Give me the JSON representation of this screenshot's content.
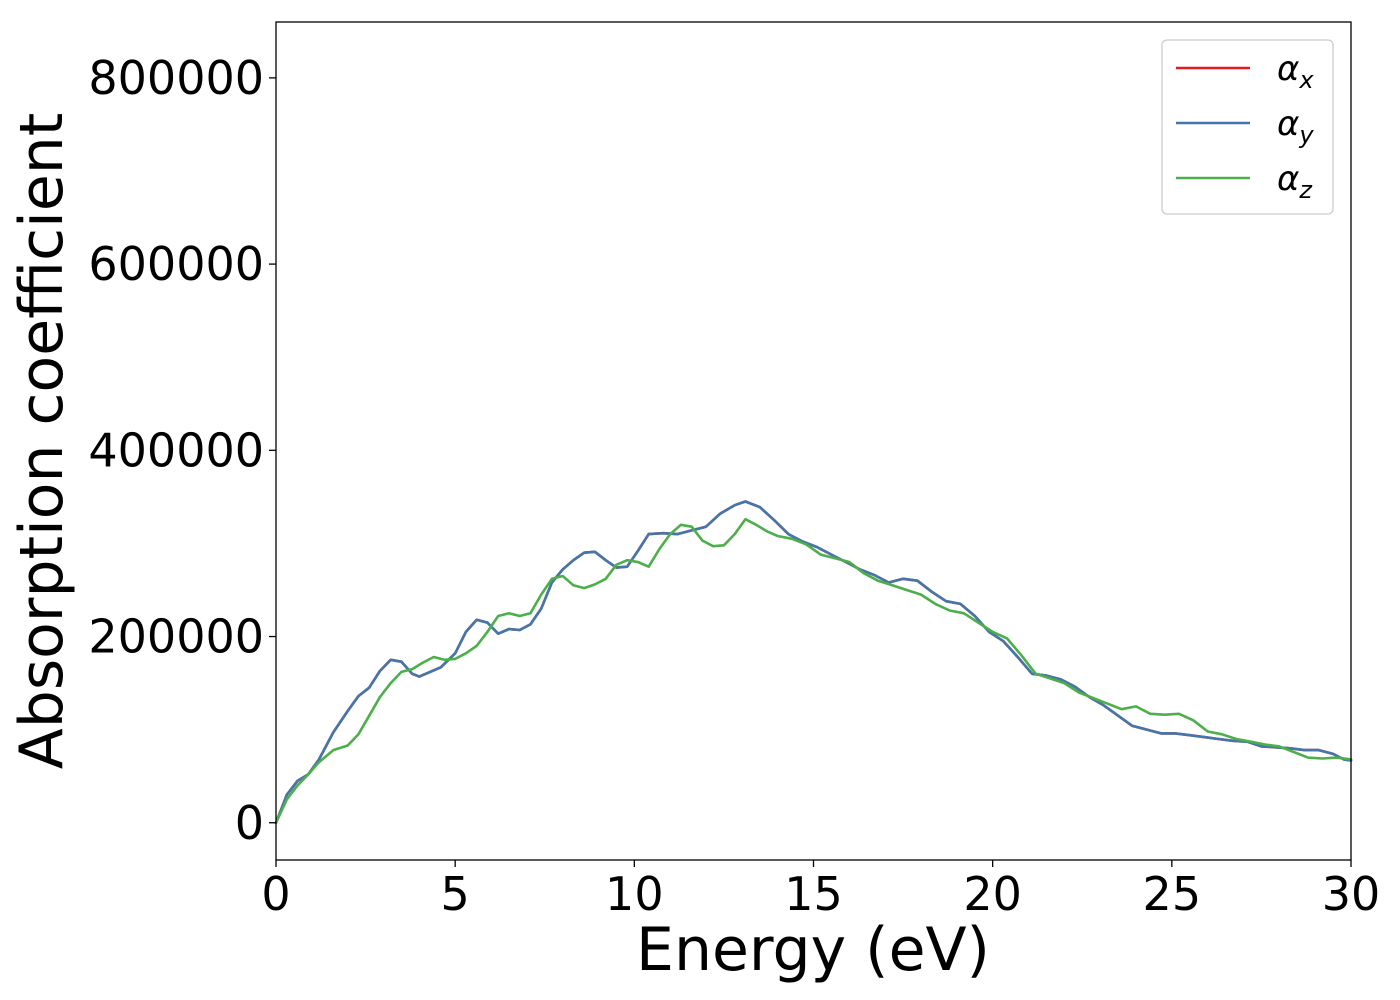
{
  "chart_data": {
    "type": "line",
    "title": "",
    "xlabel": "Energy (eV)",
    "ylabel": "Absorption coefficient",
    "xlim": [
      0,
      30
    ],
    "ylim": [
      -40000,
      860000
    ],
    "x_ticks": [
      "0",
      "5",
      "10",
      "15",
      "20",
      "25",
      "30"
    ],
    "y_ticks": [
      "0",
      "200000",
      "400000",
      "600000",
      "800000"
    ],
    "grid": false,
    "legend_placement": "top-right",
    "series": [
      {
        "name": "αx",
        "legend_base": "α",
        "legend_sub": "x",
        "color": "#e41a1c",
        "x": [
          0,
          0.3,
          0.6,
          0.9,
          1.2,
          1.6,
          2.0,
          2.3,
          2.6,
          2.9,
          3.2,
          3.5,
          3.8,
          4.0,
          4.3,
          4.6,
          5.0,
          5.3,
          5.6,
          5.9,
          6.2,
          6.5,
          6.8,
          7.1,
          7.4,
          7.7,
          8.0,
          8.3,
          8.6,
          8.9,
          9.2,
          9.5,
          9.8,
          10.1,
          10.4,
          10.8,
          11.2,
          11.6,
          12.0,
          12.4,
          12.8,
          13.1,
          13.5,
          13.9,
          14.3,
          14.7,
          15.1,
          15.5,
          15.9,
          16.3,
          16.7,
          17.1,
          17.5,
          17.9,
          18.3,
          18.7,
          19.1,
          19.5,
          19.9,
          20.3,
          20.7,
          21.1,
          21.5,
          21.9,
          22.3,
          22.7,
          23.1,
          23.5,
          23.9,
          24.3,
          24.7,
          25.1,
          25.5,
          25.9,
          26.3,
          26.7,
          27.1,
          27.5,
          27.9,
          28.3,
          28.7,
          29.1,
          29.5,
          29.8,
          30.0
        ],
        "y": [
          0,
          30000,
          45000,
          52000,
          68000,
          97000,
          120000,
          136000,
          145000,
          163000,
          175000,
          173000,
          160000,
          157000,
          162000,
          167000,
          182000,
          205000,
          218000,
          215000,
          203000,
          208000,
          207000,
          213000,
          230000,
          258000,
          272000,
          282000,
          290000,
          291000,
          282000,
          274000,
          275000,
          292000,
          310000,
          311000,
          310000,
          314000,
          318000,
          332000,
          341000,
          345000,
          339000,
          325000,
          310000,
          302000,
          296000,
          288000,
          280000,
          272000,
          266000,
          258000,
          262000,
          260000,
          248000,
          238000,
          235000,
          222000,
          205000,
          195000,
          178000,
          160000,
          158000,
          154000,
          146000,
          135000,
          126000,
          115000,
          104000,
          100000,
          96000,
          96000,
          94000,
          92000,
          90000,
          88000,
          87000,
          82000,
          81000,
          80000,
          78000,
          78000,
          74000,
          68000,
          67000
        ]
      },
      {
        "name": "αy",
        "legend_base": "α",
        "legend_sub": "y",
        "color": "#4277ab",
        "x": [
          0,
          0.3,
          0.6,
          0.9,
          1.2,
          1.6,
          2.0,
          2.3,
          2.6,
          2.9,
          3.2,
          3.5,
          3.8,
          4.0,
          4.3,
          4.6,
          5.0,
          5.3,
          5.6,
          5.9,
          6.2,
          6.5,
          6.8,
          7.1,
          7.4,
          7.7,
          8.0,
          8.3,
          8.6,
          8.9,
          9.2,
          9.5,
          9.8,
          10.1,
          10.4,
          10.8,
          11.2,
          11.6,
          12.0,
          12.4,
          12.8,
          13.1,
          13.5,
          13.9,
          14.3,
          14.7,
          15.1,
          15.5,
          15.9,
          16.3,
          16.7,
          17.1,
          17.5,
          17.9,
          18.3,
          18.7,
          19.1,
          19.5,
          19.9,
          20.3,
          20.7,
          21.1,
          21.5,
          21.9,
          22.3,
          22.7,
          23.1,
          23.5,
          23.9,
          24.3,
          24.7,
          25.1,
          25.5,
          25.9,
          26.3,
          26.7,
          27.1,
          27.5,
          27.9,
          28.3,
          28.7,
          29.1,
          29.5,
          29.8,
          30.0
        ],
        "y": [
          0,
          30000,
          45000,
          52000,
          68000,
          97000,
          120000,
          136000,
          145000,
          163000,
          175000,
          173000,
          160000,
          157000,
          162000,
          167000,
          182000,
          205000,
          218000,
          215000,
          203000,
          208000,
          207000,
          213000,
          230000,
          258000,
          272000,
          282000,
          290000,
          291000,
          282000,
          274000,
          275000,
          292000,
          310000,
          311000,
          310000,
          314000,
          318000,
          332000,
          341000,
          345000,
          339000,
          325000,
          310000,
          302000,
          296000,
          288000,
          280000,
          272000,
          266000,
          258000,
          262000,
          260000,
          248000,
          238000,
          235000,
          222000,
          205000,
          195000,
          178000,
          160000,
          158000,
          154000,
          146000,
          135000,
          126000,
          115000,
          104000,
          100000,
          96000,
          96000,
          94000,
          92000,
          90000,
          88000,
          87000,
          82000,
          81000,
          80000,
          78000,
          78000,
          74000,
          68000,
          67000
        ]
      },
      {
        "name": "αz",
        "legend_base": "α",
        "legend_sub": "z",
        "color": "#4daf4a",
        "x": [
          0,
          0.3,
          0.6,
          0.9,
          1.2,
          1.6,
          2.0,
          2.3,
          2.6,
          2.9,
          3.2,
          3.5,
          3.8,
          4.1,
          4.4,
          4.7,
          5.0,
          5.3,
          5.6,
          5.9,
          6.2,
          6.5,
          6.8,
          7.1,
          7.4,
          7.7,
          8.0,
          8.3,
          8.6,
          8.9,
          9.2,
          9.5,
          9.8,
          10.1,
          10.4,
          10.7,
          11.0,
          11.3,
          11.6,
          11.9,
          12.2,
          12.5,
          12.8,
          13.1,
          13.4,
          13.7,
          14.0,
          14.4,
          14.8,
          15.2,
          15.6,
          16.0,
          16.4,
          16.8,
          17.2,
          17.6,
          18.0,
          18.4,
          18.8,
          19.2,
          19.6,
          20.0,
          20.4,
          20.8,
          21.2,
          21.6,
          22.0,
          22.4,
          22.8,
          23.2,
          23.6,
          24.0,
          24.4,
          24.8,
          25.2,
          25.6,
          26.0,
          26.4,
          26.8,
          27.2,
          27.6,
          28.0,
          28.4,
          28.8,
          29.2,
          29.6,
          30.0
        ],
        "y": [
          0,
          25000,
          40000,
          52000,
          65000,
          78000,
          83000,
          95000,
          115000,
          135000,
          150000,
          162000,
          165000,
          172000,
          178000,
          175000,
          176000,
          182000,
          190000,
          205000,
          222000,
          225000,
          222000,
          225000,
          245000,
          262000,
          265000,
          255000,
          252000,
          256000,
          262000,
          277000,
          282000,
          280000,
          275000,
          294000,
          310000,
          320000,
          318000,
          303000,
          297000,
          298000,
          310000,
          326000,
          320000,
          313000,
          308000,
          305000,
          299000,
          288000,
          284000,
          280000,
          268000,
          260000,
          255000,
          250000,
          245000,
          235000,
          228000,
          225000,
          215000,
          205000,
          198000,
          180000,
          160000,
          155000,
          150000,
          140000,
          134000,
          128000,
          122000,
          125000,
          117000,
          116000,
          117000,
          110000,
          98000,
          95000,
          90000,
          87000,
          84000,
          82000,
          76000,
          70000,
          69000,
          70000,
          68000
        ]
      }
    ]
  }
}
